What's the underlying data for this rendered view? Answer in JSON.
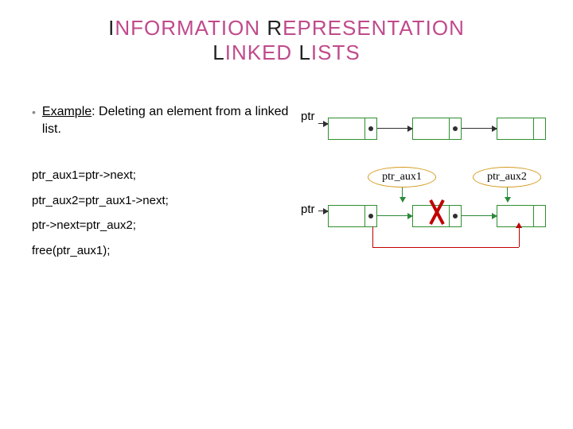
{
  "title": {
    "line1_pre": "I",
    "line1_accent": "NFORMATION",
    "line1_post": " ",
    "line1_pre2": "R",
    "line1_accent2": "EPRESENTATION",
    "line2_pre": "L",
    "line2_accent": "INKED",
    "line2_post": " ",
    "line2_pre2": "L",
    "line2_accent2": "ISTS"
  },
  "bullet": {
    "label_uline": "Example",
    "label_rest": ": Deleting an element from a linked list."
  },
  "code": {
    "l1": "ptr_aux1=ptr->next;",
    "l2": "ptr_aux2=ptr_aux1->next;",
    "l3": "ptr->next=ptr_aux2;",
    "l4": "free(ptr_aux1);"
  },
  "diagram1": {
    "ptr_label": "ptr",
    "node_border": "#2f8f2f",
    "dot_color": "#2f2f2f",
    "arrow_color": "#2f2f2f"
  },
  "diagram2": {
    "ptr_label": "ptr",
    "aux1_label": "ptr_aux1",
    "aux2_label": "ptr_aux2",
    "node_border": "#2f8f2f",
    "green_arrow": "#2a8a3a",
    "red_arrow": "#c00000",
    "ellipse_border": "#d49a1a",
    "dot_color": "#2f2f2f"
  }
}
